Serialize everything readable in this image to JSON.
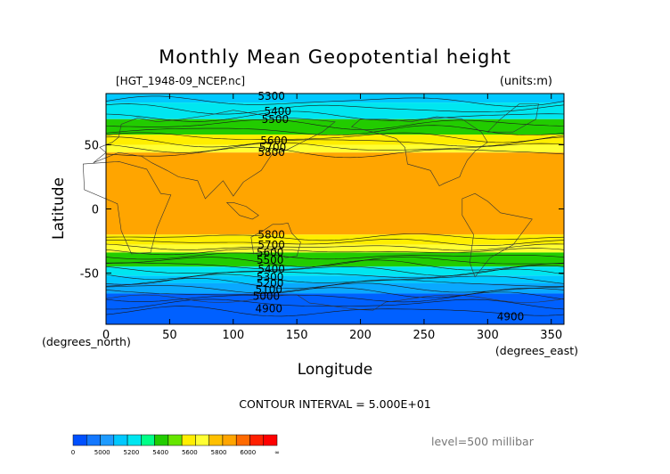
{
  "chart_data": {
    "type": "heatmap",
    "title": "Monthly Mean Geopotential height",
    "subtitle_left": "[HGT_1948-09_NCEP.nc]",
    "units": "(units:m)",
    "xlabel": "Longitude",
    "ylabel": "Latitude",
    "x_unit_label": "(degrees_east)",
    "y_unit_label": "(degrees_north)",
    "xlim": [
      0,
      360
    ],
    "ylim": [
      -90,
      90
    ],
    "x_ticks": [
      0,
      50,
      100,
      150,
      200,
      250,
      300,
      350
    ],
    "y_ticks": [
      50,
      0,
      -50
    ],
    "contour_interval_text": "CONTOUR INTERVAL = 5.000E+01",
    "level_text": "level=500 millibar",
    "contour_labels": [
      {
        "value": "5300",
        "lon": 130,
        "lat": 88
      },
      {
        "value": "5400",
        "lon": 135,
        "lat": 76
      },
      {
        "value": "5500",
        "lon": 133,
        "lat": 70
      },
      {
        "value": "5600",
        "lon": 132,
        "lat": 53
      },
      {
        "value": "5700",
        "lon": 131,
        "lat": 48
      },
      {
        "value": "5800",
        "lon": 130,
        "lat": 44
      },
      {
        "value": "5800",
        "lon": 130,
        "lat": -20
      },
      {
        "value": "5700",
        "lon": 130,
        "lat": -28
      },
      {
        "value": "5600",
        "lon": 129,
        "lat": -34
      },
      {
        "value": "5500",
        "lon": 129,
        "lat": -40
      },
      {
        "value": "5400",
        "lon": 130,
        "lat": -47
      },
      {
        "value": "5300",
        "lon": 129,
        "lat": -53
      },
      {
        "value": "5200",
        "lon": 129,
        "lat": -58
      },
      {
        "value": "5100",
        "lon": 128,
        "lat": -63
      },
      {
        "value": "5000",
        "lon": 126,
        "lat": -68
      },
      {
        "value": "4900",
        "lon": 128,
        "lat": -78
      },
      {
        "value": "4900",
        "lon": 318,
        "lat": -84
      }
    ],
    "bands": [
      {
        "from": 90,
        "to": 83,
        "color": "#00c8ff"
      },
      {
        "from": 83,
        "to": 70,
        "color": "#00e6f0"
      },
      {
        "from": 70,
        "to": 58,
        "color": "#22cc00"
      },
      {
        "from": 58,
        "to": 50,
        "color": "#ffee00"
      },
      {
        "from": 50,
        "to": 44,
        "color": "#ffff33"
      },
      {
        "from": 44,
        "to": -20,
        "color": "#ffa500"
      },
      {
        "from": -20,
        "to": -28,
        "color": "#ffee00"
      },
      {
        "from": -28,
        "to": -34,
        "color": "#ffff33"
      },
      {
        "from": -34,
        "to": -45,
        "color": "#22cc00"
      },
      {
        "from": -45,
        "to": -52,
        "color": "#00e6f0"
      },
      {
        "from": -52,
        "to": -58,
        "color": "#00c8ff"
      },
      {
        "from": -58,
        "to": -66,
        "color": "#0aa8ff"
      },
      {
        "from": -66,
        "to": -90,
        "color": "#0060ff"
      }
    ],
    "colorbar": {
      "segment_colors": [
        "#0050ff",
        "#1478ff",
        "#1e9bff",
        "#00c8ff",
        "#00e6f0",
        "#00ff88",
        "#22cc00",
        "#66e600",
        "#ffee00",
        "#ffff33",
        "#ffc000",
        "#ffa500",
        "#ff6a00",
        "#ff2000",
        "#ff0000"
      ],
      "tick_labels": [
        "0",
        "5000",
        "5200",
        "5400",
        "5600",
        "5800",
        "6000",
        "∞"
      ]
    }
  }
}
